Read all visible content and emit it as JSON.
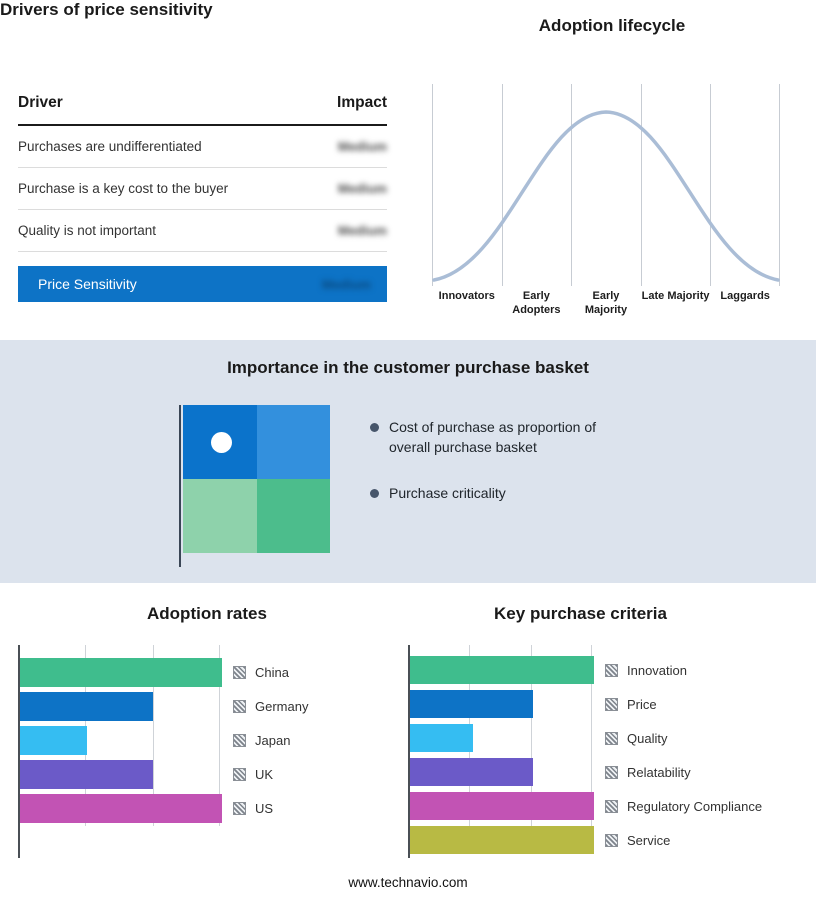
{
  "page": {
    "footer": "www.technavio.com"
  },
  "drivers_panel": {
    "title": "Drivers of price sensitivity",
    "columns": {
      "driver": "Driver",
      "impact": "Impact"
    },
    "rows": [
      {
        "label": "Purchases are undifferentiated",
        "impact": "Medium"
      },
      {
        "label": "Purchase is a key cost to the buyer",
        "impact": "Medium"
      },
      {
        "label": "Quality is not important",
        "impact": "Medium"
      }
    ],
    "highlight_row": {
      "label": "Price Sensitivity",
      "impact": "Medium"
    },
    "accent_color": "#0d73c6"
  },
  "lifecycle_panel": {
    "title": "Adoption lifecycle",
    "stages": [
      "Innovators",
      "Early Adopters",
      "Early Majority",
      "Late Majority",
      "Laggards"
    ],
    "curve_color": "#aabdd6",
    "chart_type": "bell-curve"
  },
  "basket_panel": {
    "title": "Importance in the customer purchase basket",
    "bullets": [
      "Cost of purchase as proportion of overall purchase basket",
      "Purchase criticality"
    ],
    "background": "#dce3ed",
    "quadrant_colors": {
      "top_left": "#0b73cb",
      "top_right": "#3390dd",
      "bottom_left": "#8ed2ab",
      "bottom_right": "#4cbd8c"
    }
  },
  "chart_data": [
    {
      "type": "bar",
      "orientation": "horizontal",
      "title": "Adoption rates",
      "categories": [
        "China",
        "Germany",
        "Japan",
        "UK",
        "US"
      ],
      "values": [
        100,
        66,
        33,
        66,
        100
      ],
      "colors": [
        "#3fbd8d",
        "#0d73c6",
        "#35bdf2",
        "#6b5ac8",
        "#c253b4"
      ],
      "xlim": [
        0,
        100
      ],
      "grid": true,
      "legend_position": "right"
    },
    {
      "type": "bar",
      "orientation": "horizontal",
      "title": "Key purchase criteria",
      "categories": [
        "Innovation",
        "Price",
        "Quality",
        "Relatability",
        "Regulatory Compliance",
        "Service"
      ],
      "values": [
        100,
        67,
        34,
        67,
        100,
        100
      ],
      "colors": [
        "#3fbd8d",
        "#0d73c6",
        "#35bdf2",
        "#6b5ac8",
        "#c253b4",
        "#b8ba44"
      ],
      "xlim": [
        0,
        100
      ],
      "grid": true,
      "legend_position": "right"
    }
  ]
}
